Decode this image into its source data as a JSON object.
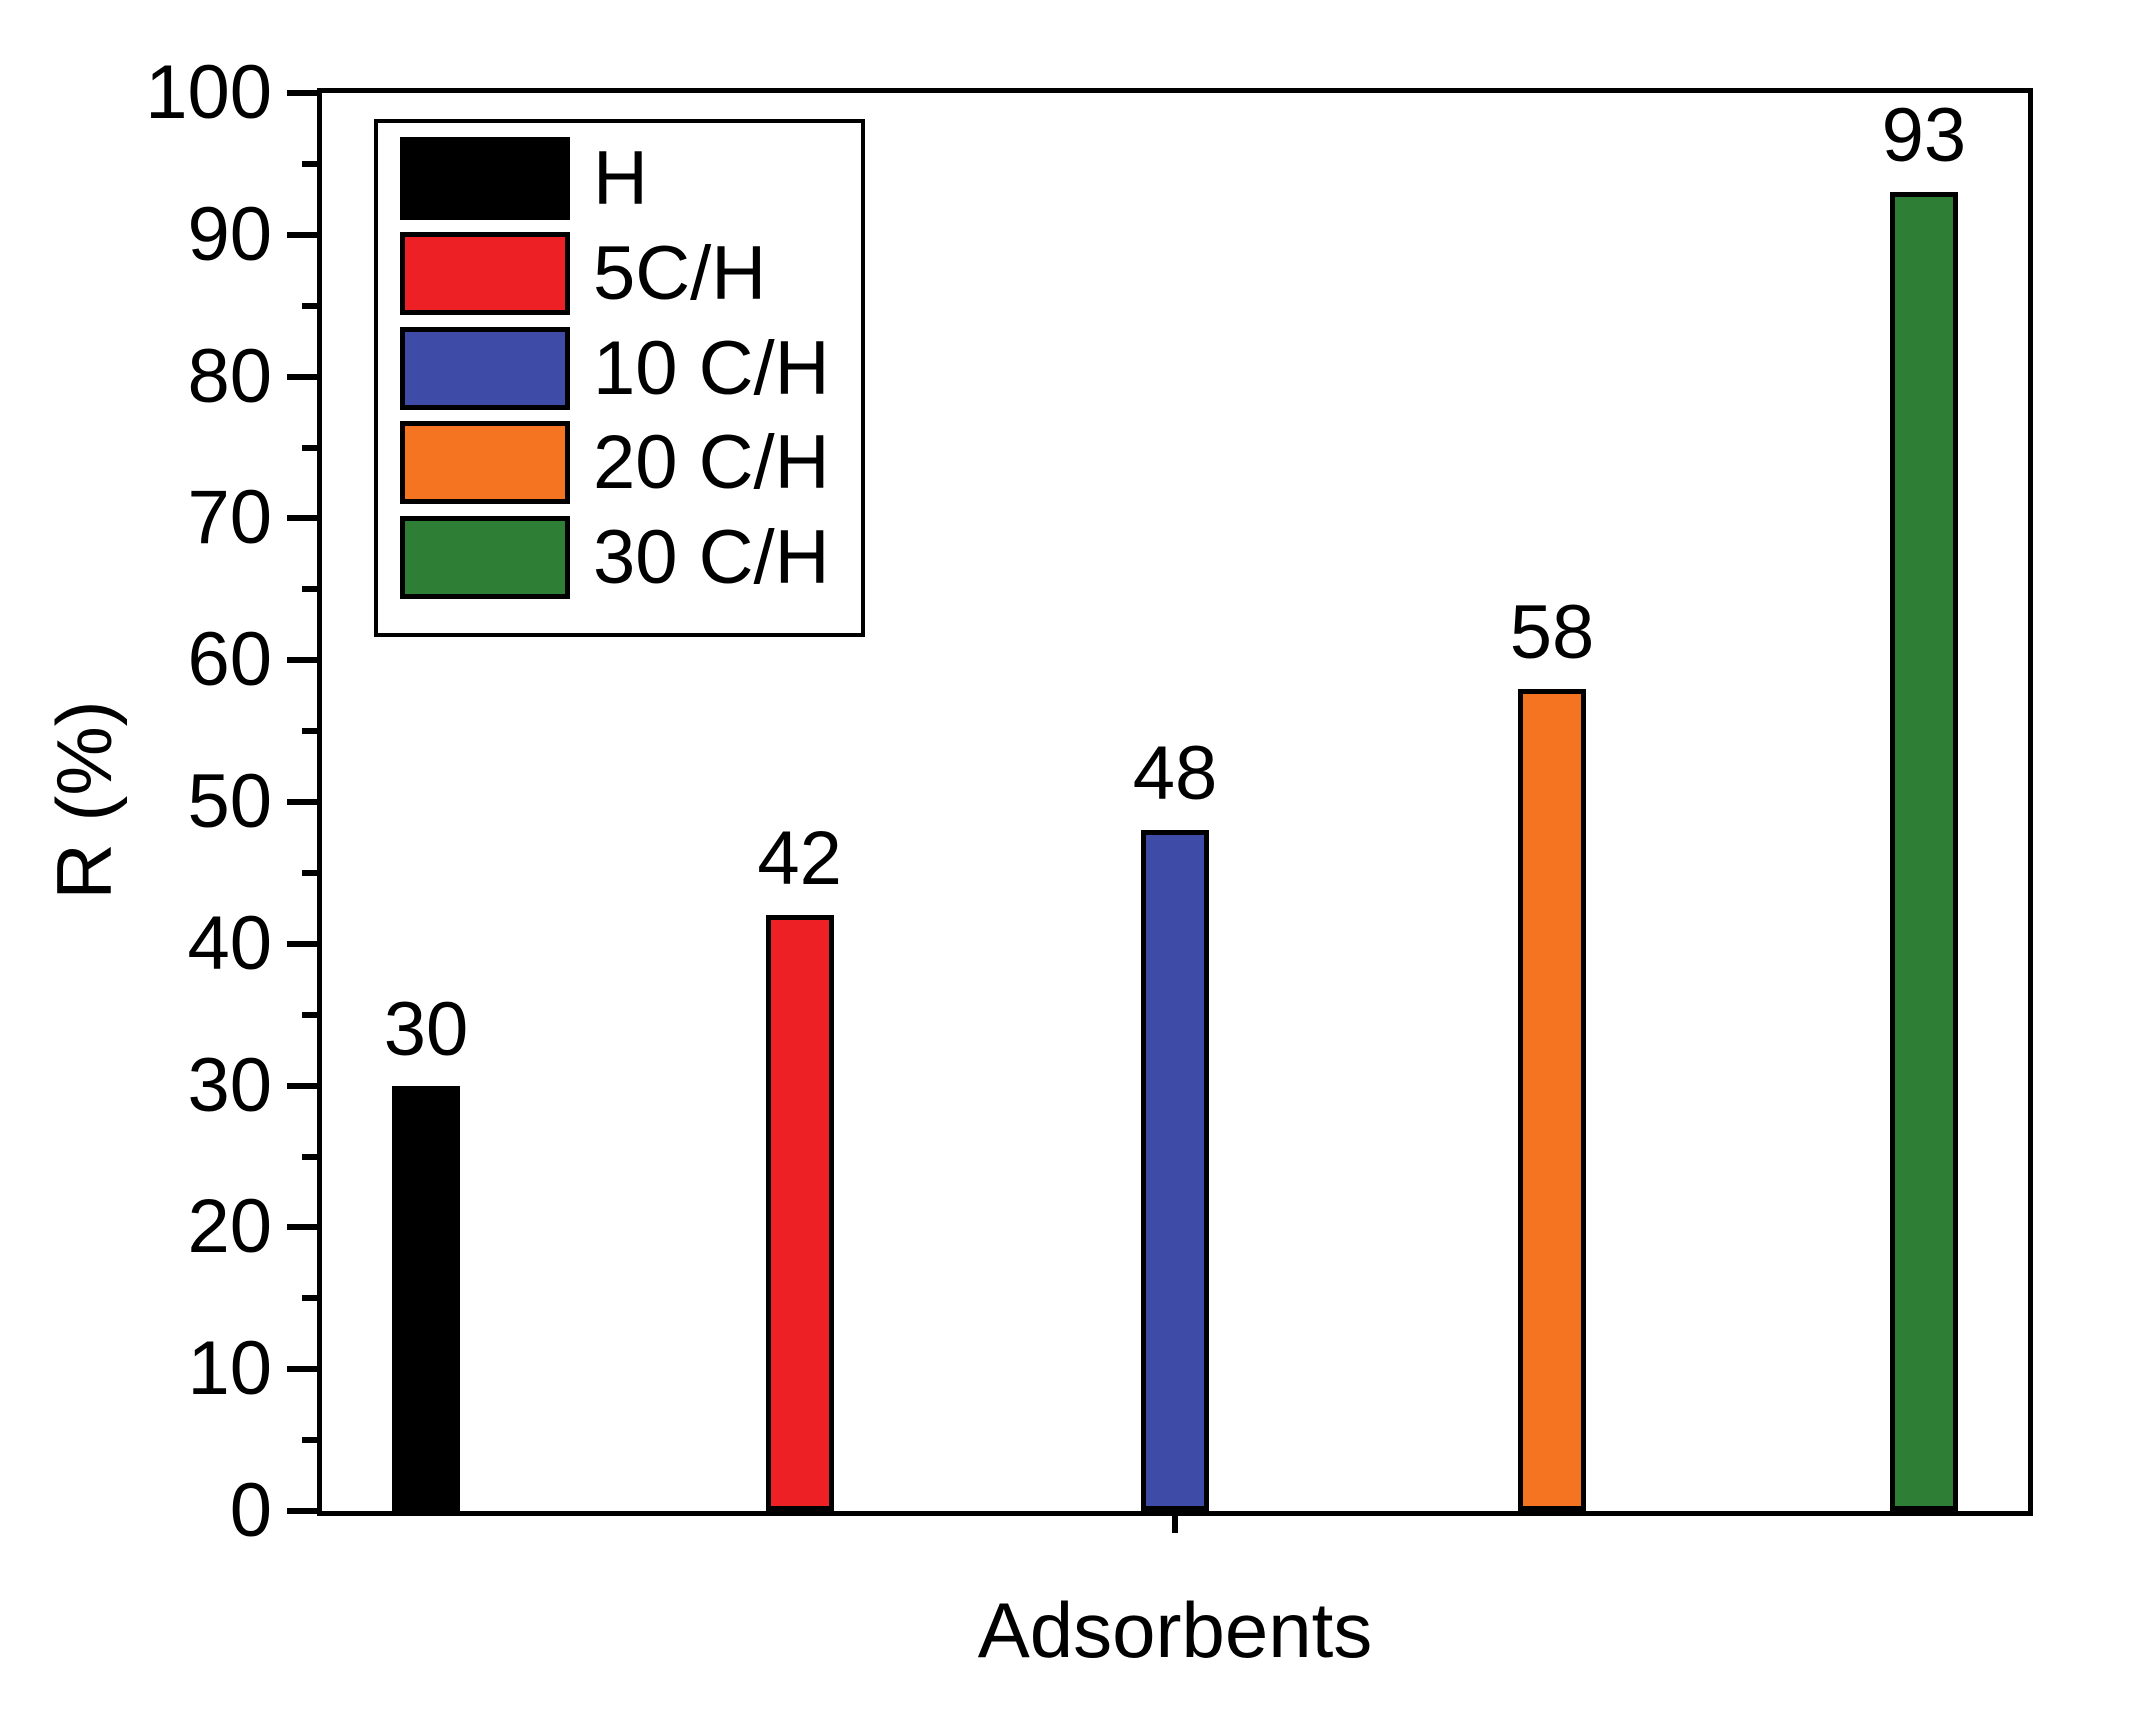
{
  "chart_data": {
    "type": "bar",
    "title": "",
    "xlabel": "Adsorbents",
    "ylabel": "R (%)",
    "ylim": [
      0,
      100
    ],
    "ytick_step": 10,
    "yminor_step": 5,
    "ytick_labels": [
      "0",
      "10",
      "20",
      "30",
      "40",
      "50",
      "60",
      "70",
      "80",
      "90",
      "100"
    ],
    "categories": [
      "H",
      "5C/H",
      "10 C/H",
      "20 C/H",
      "30 C/H"
    ],
    "values": [
      30,
      42,
      48,
      58,
      93
    ],
    "bar_value_labels": [
      "30",
      "42",
      "48",
      "58",
      "93"
    ],
    "bar_colors": [
      "#000000",
      "#ED2026",
      "#3E4BA7",
      "#F47421",
      "#2F7E36"
    ],
    "grid": false,
    "axis_color": "#000000",
    "background_color": "#FFFFFF",
    "legend": {
      "position": "top-left",
      "entries": [
        {
          "label": "H",
          "color": "#000000"
        },
        {
          "label": "5C/H",
          "color": "#ED2026"
        },
        {
          "label": "10 C/H",
          "color": "#3E4BA7"
        },
        {
          "label": "20 C/H",
          "color": "#F47421"
        },
        {
          "label": "30 C/H",
          "color": "#2F7E36"
        }
      ]
    }
  }
}
